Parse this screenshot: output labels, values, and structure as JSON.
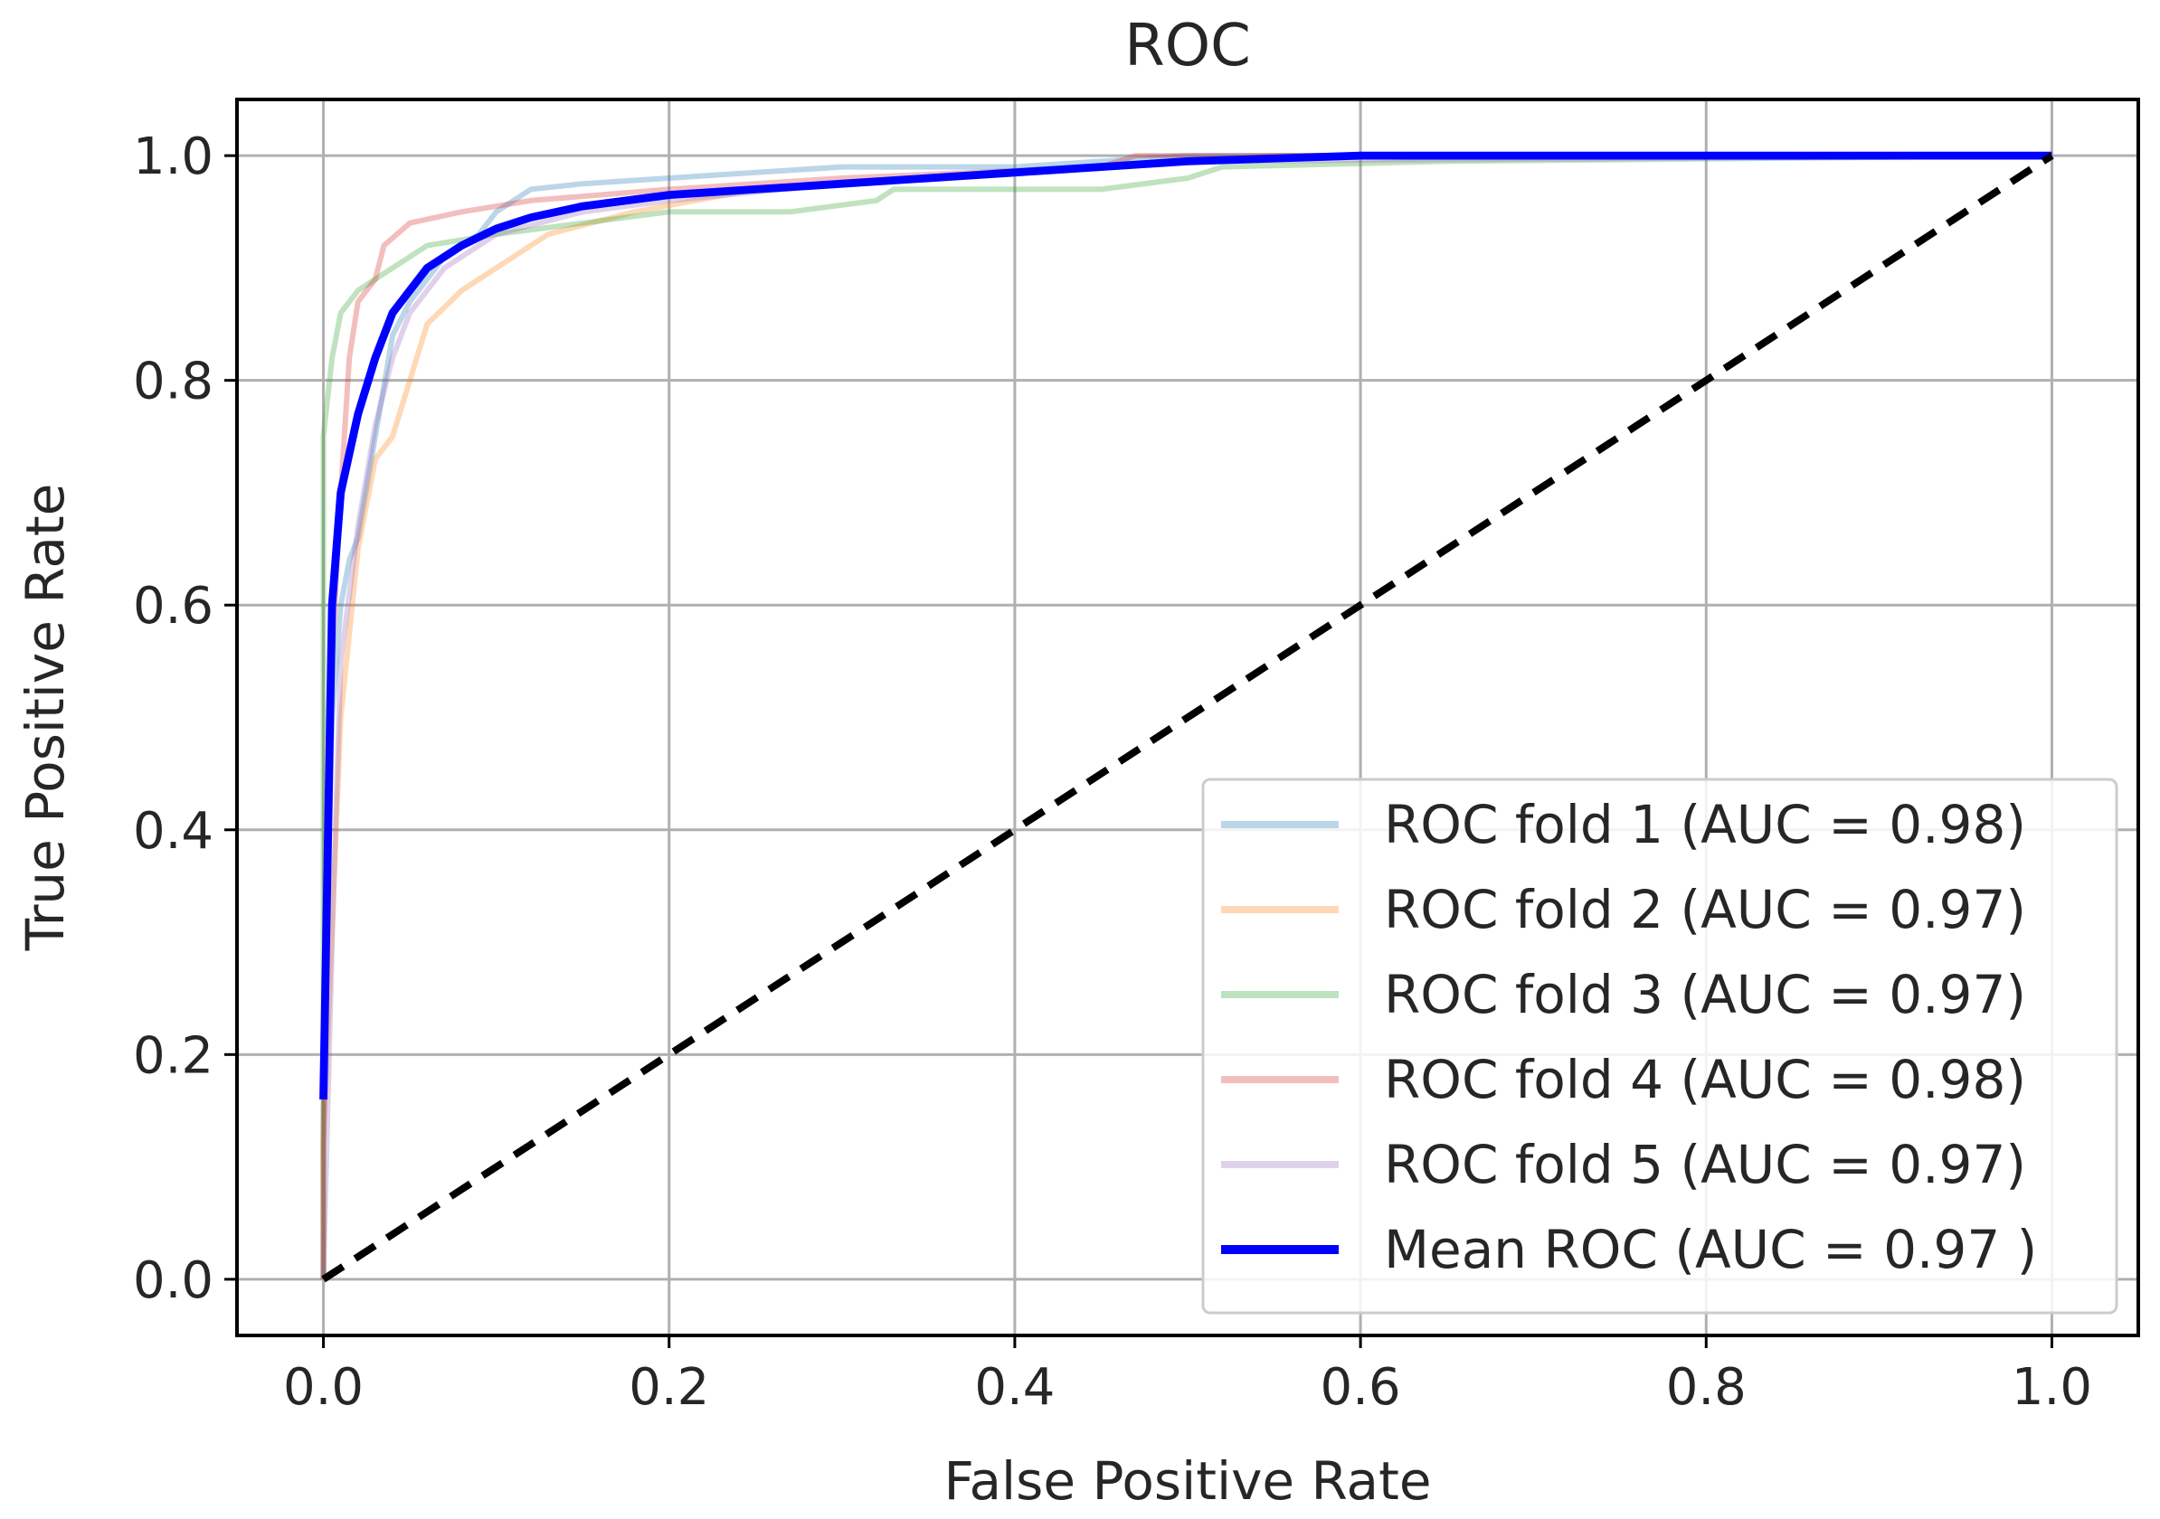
{
  "chart_data": {
    "type": "line",
    "title": "ROC",
    "xlabel": "False Positive Rate",
    "ylabel": "True Positive Rate",
    "xlim": [
      -0.05,
      1.05
    ],
    "ylim": [
      -0.05,
      1.05
    ],
    "grid": true,
    "xticks": [
      0.0,
      0.2,
      0.4,
      0.6,
      0.8,
      1.0
    ],
    "yticks": [
      0.0,
      0.2,
      0.4,
      0.6,
      0.8,
      1.0
    ],
    "xtick_labels": [
      "0.0",
      "0.2",
      "0.4",
      "0.6",
      "0.8",
      "1.0"
    ],
    "ytick_labels": [
      "0.0",
      "0.2",
      "0.4",
      "0.6",
      "0.8",
      "1.0"
    ],
    "legend_position": "lower-right",
    "series": [
      {
        "name": "ROC fold 1 (AUC = 0.98)",
        "color": "#1f77b4",
        "opacity": 0.3,
        "points": [
          [
            0,
            0
          ],
          [
            0,
            0.15
          ],
          [
            0.005,
            0.5
          ],
          [
            0.01,
            0.6
          ],
          [
            0.015,
            0.64
          ],
          [
            0.02,
            0.66
          ],
          [
            0.03,
            0.75
          ],
          [
            0.04,
            0.84
          ],
          [
            0.05,
            0.87
          ],
          [
            0.07,
            0.91
          ],
          [
            0.09,
            0.93
          ],
          [
            0.1,
            0.95
          ],
          [
            0.12,
            0.97
          ],
          [
            0.15,
            0.975
          ],
          [
            0.2,
            0.98
          ],
          [
            0.3,
            0.99
          ],
          [
            0.4,
            0.99
          ],
          [
            0.5,
            1.0
          ],
          [
            1.0,
            1.0
          ]
        ]
      },
      {
        "name": "ROC fold 2 (AUC = 0.97)",
        "color": "#ff7f0e",
        "opacity": 0.3,
        "points": [
          [
            0,
            0
          ],
          [
            0,
            0.12
          ],
          [
            0.01,
            0.5
          ],
          [
            0.02,
            0.65
          ],
          [
            0.03,
            0.73
          ],
          [
            0.04,
            0.75
          ],
          [
            0.05,
            0.8
          ],
          [
            0.06,
            0.85
          ],
          [
            0.08,
            0.88
          ],
          [
            0.1,
            0.9
          ],
          [
            0.13,
            0.93
          ],
          [
            0.18,
            0.95
          ],
          [
            0.25,
            0.97
          ],
          [
            0.35,
            0.98
          ],
          [
            0.45,
            0.99
          ],
          [
            0.55,
            1.0
          ],
          [
            1.0,
            1.0
          ]
        ]
      },
      {
        "name": "ROC fold 3 (AUC = 0.97)",
        "color": "#2ca02c",
        "opacity": 0.3,
        "points": [
          [
            0,
            0
          ],
          [
            0,
            0.75
          ],
          [
            0.005,
            0.82
          ],
          [
            0.01,
            0.86
          ],
          [
            0.02,
            0.88
          ],
          [
            0.04,
            0.9
          ],
          [
            0.06,
            0.92
          ],
          [
            0.1,
            0.93
          ],
          [
            0.15,
            0.94
          ],
          [
            0.2,
            0.95
          ],
          [
            0.27,
            0.95
          ],
          [
            0.32,
            0.96
          ],
          [
            0.33,
            0.97
          ],
          [
            0.45,
            0.97
          ],
          [
            0.5,
            0.98
          ],
          [
            0.52,
            0.99
          ],
          [
            0.65,
            0.995
          ],
          [
            1.0,
            1.0
          ]
        ]
      },
      {
        "name": "ROC fold 4 (AUC = 0.98)",
        "color": "#d62728",
        "opacity": 0.3,
        "points": [
          [
            0,
            0
          ],
          [
            0,
            0.12
          ],
          [
            0.005,
            0.55
          ],
          [
            0.01,
            0.7
          ],
          [
            0.015,
            0.82
          ],
          [
            0.02,
            0.87
          ],
          [
            0.03,
            0.89
          ],
          [
            0.035,
            0.92
          ],
          [
            0.05,
            0.94
          ],
          [
            0.08,
            0.95
          ],
          [
            0.12,
            0.96
          ],
          [
            0.2,
            0.97
          ],
          [
            0.3,
            0.98
          ],
          [
            0.45,
            0.99
          ],
          [
            0.47,
            1.0
          ],
          [
            1.0,
            1.0
          ]
        ]
      },
      {
        "name": "ROC fold 5 (AUC = 0.97)",
        "color": "#9467bd",
        "opacity": 0.3,
        "points": [
          [
            0,
            0
          ],
          [
            0.005,
            0.3
          ],
          [
            0.01,
            0.55
          ],
          [
            0.02,
            0.67
          ],
          [
            0.03,
            0.76
          ],
          [
            0.04,
            0.82
          ],
          [
            0.05,
            0.86
          ],
          [
            0.07,
            0.9
          ],
          [
            0.1,
            0.93
          ],
          [
            0.15,
            0.95
          ],
          [
            0.2,
            0.96
          ],
          [
            0.3,
            0.975
          ],
          [
            0.4,
            0.985
          ],
          [
            0.5,
            0.995
          ],
          [
            1.0,
            1.0
          ]
        ]
      },
      {
        "name": "Mean ROC (AUC = 0.97 )",
        "color": "#0000ff",
        "opacity": 1.0,
        "width": 4,
        "points": [
          [
            0,
            0.16
          ],
          [
            0.005,
            0.6
          ],
          [
            0.01,
            0.7
          ],
          [
            0.02,
            0.77
          ],
          [
            0.03,
            0.82
          ],
          [
            0.04,
            0.86
          ],
          [
            0.06,
            0.9
          ],
          [
            0.08,
            0.92
          ],
          [
            0.1,
            0.935
          ],
          [
            0.12,
            0.945
          ],
          [
            0.15,
            0.955
          ],
          [
            0.2,
            0.965
          ],
          [
            0.25,
            0.97
          ],
          [
            0.3,
            0.975
          ],
          [
            0.4,
            0.985
          ],
          [
            0.5,
            0.995
          ],
          [
            0.6,
            1.0
          ],
          [
            1.0,
            1.0
          ]
        ]
      },
      {
        "name": "chance",
        "color": "#000000",
        "opacity": 1.0,
        "dashed": true,
        "in_legend": false,
        "points": [
          [
            0,
            0
          ],
          [
            1,
            1
          ]
        ]
      }
    ]
  }
}
